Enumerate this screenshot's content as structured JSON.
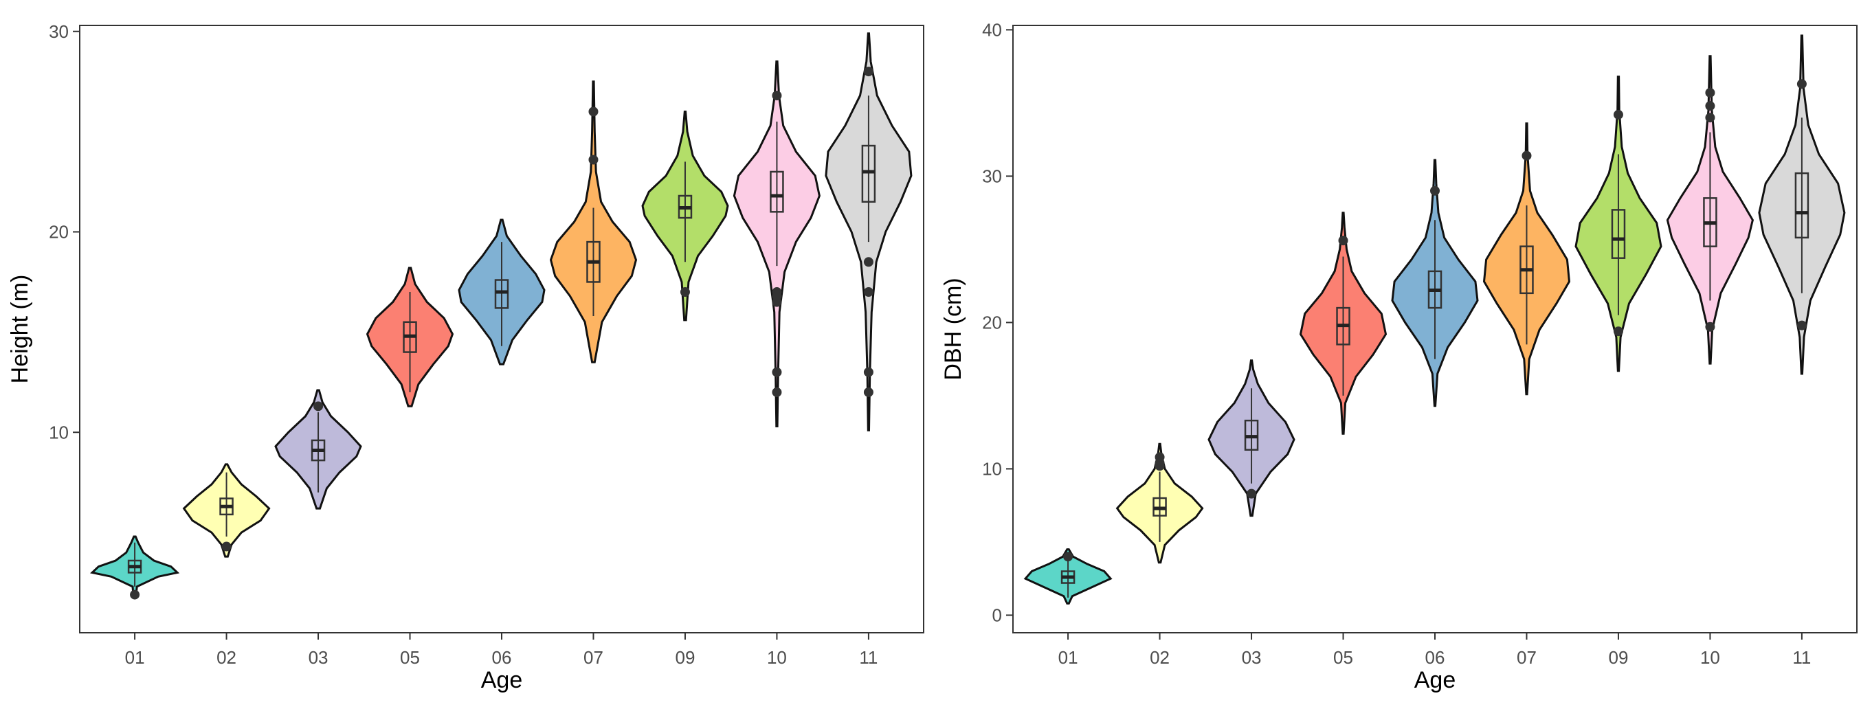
{
  "chart_data": [
    {
      "type": "violin",
      "xlabel": "Age",
      "ylabel": "Height (m)",
      "ylim": [
        0,
        30.3
      ],
      "yticks": [
        10,
        20,
        30
      ],
      "grid": false,
      "categories": [
        "01",
        "02",
        "03",
        "05",
        "06",
        "07",
        "09",
        "10",
        "11"
      ],
      "colors": [
        "#5cd6c8",
        "#ffffb3",
        "#bebada",
        "#fb8072",
        "#80b1d3",
        "#fdb462",
        "#b3de69",
        "#fccde5",
        "#d9d9d9"
      ],
      "groups": [
        {
          "category": "01",
          "violin_min": 1.8,
          "violin_max": 4.8,
          "q1": 3.0,
          "median": 3.3,
          "q3": 3.6,
          "whisker_low": 2.3,
          "whisker_high": 4.5,
          "outliers": [
            1.9
          ],
          "shape": [
            [
              1.8,
              0.03
            ],
            [
              2.3,
              0.05
            ],
            [
              2.8,
              0.55
            ],
            [
              3.0,
              1.0
            ],
            [
              3.3,
              0.85
            ],
            [
              3.6,
              0.45
            ],
            [
              4.0,
              0.2
            ],
            [
              4.5,
              0.08
            ],
            [
              4.8,
              0.02
            ]
          ]
        },
        {
          "category": "02",
          "violin_min": 3.8,
          "violin_max": 8.4,
          "q1": 5.9,
          "median": 6.3,
          "q3": 6.7,
          "whisker_low": 4.8,
          "whisker_high": 8.0,
          "outliers": [
            4.3
          ],
          "shape": [
            [
              3.8,
              0.03
            ],
            [
              4.4,
              0.12
            ],
            [
              5.0,
              0.35
            ],
            [
              5.6,
              0.8
            ],
            [
              6.2,
              1.0
            ],
            [
              6.8,
              0.7
            ],
            [
              7.4,
              0.35
            ],
            [
              8.0,
              0.12
            ],
            [
              8.4,
              0.02
            ]
          ]
        },
        {
          "category": "03",
          "violin_min": 6.2,
          "violin_max": 12.1,
          "q1": 8.6,
          "median": 9.1,
          "q3": 9.6,
          "whisker_low": 7.0,
          "whisker_high": 11.0,
          "outliers": [
            11.3
          ],
          "shape": [
            [
              6.2,
              0.04
            ],
            [
              7.2,
              0.2
            ],
            [
              8.0,
              0.5
            ],
            [
              8.8,
              0.9
            ],
            [
              9.3,
              1.0
            ],
            [
              10.0,
              0.7
            ],
            [
              10.8,
              0.3
            ],
            [
              11.5,
              0.1
            ],
            [
              12.1,
              0.02
            ]
          ]
        },
        {
          "category": "05",
          "violin_min": 11.3,
          "violin_max": 18.2,
          "q1": 14.0,
          "median": 14.8,
          "q3": 15.5,
          "whisker_low": 12.0,
          "whisker_high": 17.0,
          "outliers": [],
          "shape": [
            [
              11.3,
              0.04
            ],
            [
              12.4,
              0.2
            ],
            [
              13.4,
              0.55
            ],
            [
              14.3,
              0.9
            ],
            [
              14.9,
              1.0
            ],
            [
              15.7,
              0.8
            ],
            [
              16.5,
              0.4
            ],
            [
              17.4,
              0.12
            ],
            [
              18.2,
              0.02
            ]
          ]
        },
        {
          "category": "06",
          "violin_min": 13.4,
          "violin_max": 20.6,
          "q1": 16.2,
          "median": 17.0,
          "q3": 17.6,
          "whisker_low": 14.3,
          "whisker_high": 19.5,
          "outliers": [],
          "shape": [
            [
              13.4,
              0.04
            ],
            [
              14.6,
              0.25
            ],
            [
              15.6,
              0.6
            ],
            [
              16.5,
              0.95
            ],
            [
              17.1,
              1.0
            ],
            [
              17.9,
              0.8
            ],
            [
              18.8,
              0.45
            ],
            [
              19.8,
              0.12
            ],
            [
              20.6,
              0.02
            ]
          ]
        },
        {
          "category": "07",
          "violin_min": 13.5,
          "violin_max": 27.5,
          "q1": 17.5,
          "median": 18.5,
          "q3": 19.5,
          "whisker_low": 15.8,
          "whisker_high": 21.2,
          "outliers": [
            23.6,
            26.0
          ],
          "shape": [
            [
              13.5,
              0.03
            ],
            [
              15.5,
              0.2
            ],
            [
              16.8,
              0.55
            ],
            [
              17.8,
              0.9
            ],
            [
              18.6,
              1.0
            ],
            [
              19.5,
              0.85
            ],
            [
              20.5,
              0.45
            ],
            [
              21.5,
              0.18
            ],
            [
              23.0,
              0.06
            ],
            [
              25.0,
              0.03
            ],
            [
              27.5,
              0.01
            ]
          ]
        },
        {
          "category": "09",
          "violin_min": 15.6,
          "violin_max": 26.0,
          "q1": 20.7,
          "median": 21.2,
          "q3": 21.8,
          "whisker_low": 18.5,
          "whisker_high": 23.5,
          "outliers": [
            17.0
          ],
          "shape": [
            [
              15.6,
              0.02
            ],
            [
              17.5,
              0.08
            ],
            [
              18.8,
              0.3
            ],
            [
              19.8,
              0.65
            ],
            [
              20.8,
              0.95
            ],
            [
              21.3,
              1.0
            ],
            [
              22.0,
              0.85
            ],
            [
              22.8,
              0.45
            ],
            [
              23.8,
              0.18
            ],
            [
              25.0,
              0.05
            ],
            [
              26.0,
              0.01
            ]
          ]
        },
        {
          "category": "10",
          "violin_min": 10.3,
          "violin_max": 28.5,
          "q1": 21.0,
          "median": 21.8,
          "q3": 23.0,
          "whisker_low": 18.3,
          "whisker_high": 25.5,
          "outliers": [
            26.8,
            17.0,
            16.8,
            16.5,
            13.0,
            12.0
          ],
          "shape": [
            [
              10.3,
              0.01
            ],
            [
              13.0,
              0.03
            ],
            [
              16.0,
              0.06
            ],
            [
              18.0,
              0.18
            ],
            [
              19.5,
              0.45
            ],
            [
              20.7,
              0.8
            ],
            [
              21.8,
              1.0
            ],
            [
              22.8,
              0.9
            ],
            [
              24.0,
              0.45
            ],
            [
              25.3,
              0.15
            ],
            [
              26.8,
              0.05
            ],
            [
              28.5,
              0.01
            ]
          ]
        },
        {
          "category": "11",
          "violin_min": 10.1,
          "violin_max": 29.9,
          "q1": 21.5,
          "median": 23.0,
          "q3": 24.3,
          "whisker_low": 19.5,
          "whisker_high": 26.8,
          "outliers": [
            28.0,
            18.5,
            17.0,
            13.0,
            12.0
          ],
          "shape": [
            [
              10.1,
              0.01
            ],
            [
              13.0,
              0.03
            ],
            [
              16.0,
              0.07
            ],
            [
              18.5,
              0.18
            ],
            [
              20.0,
              0.4
            ],
            [
              21.5,
              0.75
            ],
            [
              22.8,
              1.0
            ],
            [
              24.0,
              0.95
            ],
            [
              25.3,
              0.55
            ],
            [
              26.8,
              0.2
            ],
            [
              28.5,
              0.05
            ],
            [
              29.9,
              0.01
            ]
          ]
        }
      ]
    },
    {
      "type": "violin",
      "xlabel": "Age",
      "ylabel": "DBH (cm)",
      "ylim": [
        -1.2,
        40.3
      ],
      "yticks": [
        0,
        10,
        20,
        30,
        40
      ],
      "grid": false,
      "categories": [
        "01",
        "02",
        "03",
        "05",
        "06",
        "07",
        "09",
        "10",
        "11"
      ],
      "colors": [
        "#5cd6c8",
        "#ffffb3",
        "#bebada",
        "#fb8072",
        "#80b1d3",
        "#fdb462",
        "#b3de69",
        "#fccde5",
        "#d9d9d9"
      ],
      "groups": [
        {
          "category": "01",
          "violin_min": 0.8,
          "violin_max": 4.5,
          "q1": 2.2,
          "median": 2.6,
          "q3": 3.0,
          "whisker_low": 1.2,
          "whisker_high": 3.8,
          "outliers": [
            4.0
          ],
          "shape": [
            [
              0.8,
              0.02
            ],
            [
              1.3,
              0.1
            ],
            [
              1.9,
              0.55
            ],
            [
              2.5,
              1.0
            ],
            [
              3.0,
              0.85
            ],
            [
              3.5,
              0.45
            ],
            [
              4.0,
              0.12
            ],
            [
              4.5,
              0.02
            ]
          ]
        },
        {
          "category": "02",
          "violin_min": 3.6,
          "violin_max": 11.7,
          "q1": 6.8,
          "median": 7.3,
          "q3": 8.0,
          "whisker_low": 5.0,
          "whisker_high": 9.8,
          "outliers": [
            10.8,
            10.4,
            10.2
          ],
          "shape": [
            [
              3.6,
              0.02
            ],
            [
              4.8,
              0.12
            ],
            [
              5.8,
              0.45
            ],
            [
              6.7,
              0.85
            ],
            [
              7.3,
              1.0
            ],
            [
              8.1,
              0.75
            ],
            [
              9.0,
              0.35
            ],
            [
              10.0,
              0.12
            ],
            [
              11.0,
              0.04
            ],
            [
              11.7,
              0.01
            ]
          ]
        },
        {
          "category": "03",
          "violin_min": 6.8,
          "violin_max": 17.4,
          "q1": 11.3,
          "median": 12.2,
          "q3": 13.3,
          "whisker_low": 9.0,
          "whisker_high": 15.5,
          "outliers": [
            8.3
          ],
          "shape": [
            [
              6.8,
              0.02
            ],
            [
              8.3,
              0.1
            ],
            [
              9.8,
              0.45
            ],
            [
              11.0,
              0.85
            ],
            [
              12.0,
              1.0
            ],
            [
              13.2,
              0.8
            ],
            [
              14.5,
              0.4
            ],
            [
              15.8,
              0.15
            ],
            [
              16.8,
              0.04
            ],
            [
              17.4,
              0.01
            ]
          ]
        },
        {
          "category": "05",
          "violin_min": 12.4,
          "violin_max": 27.5,
          "q1": 18.5,
          "median": 19.8,
          "q3": 21.0,
          "whisker_low": 15.0,
          "whisker_high": 24.5,
          "outliers": [
            25.6
          ],
          "shape": [
            [
              12.4,
              0.01
            ],
            [
              14.5,
              0.05
            ],
            [
              16.3,
              0.3
            ],
            [
              17.8,
              0.7
            ],
            [
              19.2,
              1.0
            ],
            [
              20.6,
              0.9
            ],
            [
              22.0,
              0.5
            ],
            [
              23.5,
              0.2
            ],
            [
              25.0,
              0.08
            ],
            [
              26.5,
              0.03
            ],
            [
              27.5,
              0.01
            ]
          ]
        },
        {
          "category": "06",
          "violin_min": 14.3,
          "violin_max": 31.1,
          "q1": 21.0,
          "median": 22.2,
          "q3": 23.5,
          "whisker_low": 17.5,
          "whisker_high": 27.0,
          "outliers": [
            29.0
          ],
          "shape": [
            [
              14.3,
              0.01
            ],
            [
              16.5,
              0.06
            ],
            [
              18.3,
              0.3
            ],
            [
              20.0,
              0.7
            ],
            [
              21.5,
              1.0
            ],
            [
              22.8,
              0.95
            ],
            [
              24.3,
              0.55
            ],
            [
              25.8,
              0.22
            ],
            [
              27.5,
              0.08
            ],
            [
              29.5,
              0.03
            ],
            [
              31.1,
              0.01
            ]
          ]
        },
        {
          "category": "07",
          "violin_min": 15.1,
          "violin_max": 33.6,
          "q1": 22.0,
          "median": 23.6,
          "q3": 25.2,
          "whisker_low": 18.5,
          "whisker_high": 28.0,
          "outliers": [
            31.4
          ],
          "shape": [
            [
              15.1,
              0.01
            ],
            [
              17.5,
              0.06
            ],
            [
              19.5,
              0.3
            ],
            [
              21.3,
              0.7
            ],
            [
              22.8,
              1.0
            ],
            [
              24.3,
              0.95
            ],
            [
              26.0,
              0.6
            ],
            [
              27.5,
              0.25
            ],
            [
              29.0,
              0.08
            ],
            [
              31.5,
              0.02
            ],
            [
              33.6,
              0.01
            ]
          ]
        },
        {
          "category": "09",
          "violin_min": 16.7,
          "violin_max": 36.8,
          "q1": 24.4,
          "median": 25.7,
          "q3": 27.7,
          "whisker_low": 20.5,
          "whisker_high": 31.5,
          "outliers": [
            34.2,
            19.4
          ],
          "shape": [
            [
              16.7,
              0.01
            ],
            [
              19.0,
              0.05
            ],
            [
              21.3,
              0.25
            ],
            [
              23.3,
              0.65
            ],
            [
              25.2,
              1.0
            ],
            [
              26.8,
              0.9
            ],
            [
              28.5,
              0.5
            ],
            [
              30.2,
              0.22
            ],
            [
              32.0,
              0.08
            ],
            [
              34.5,
              0.02
            ],
            [
              36.8,
              0.01
            ]
          ]
        },
        {
          "category": "10",
          "violin_min": 17.2,
          "violin_max": 38.2,
          "q1": 25.2,
          "median": 26.8,
          "q3": 28.5,
          "whisker_low": 21.5,
          "whisker_high": 33.0,
          "outliers": [
            35.7,
            34.8,
            34.0,
            19.7
          ],
          "shape": [
            [
              17.2,
              0.01
            ],
            [
              19.5,
              0.05
            ],
            [
              22.0,
              0.25
            ],
            [
              24.0,
              0.6
            ],
            [
              25.8,
              0.9
            ],
            [
              27.0,
              1.0
            ],
            [
              28.5,
              0.7
            ],
            [
              30.3,
              0.3
            ],
            [
              32.0,
              0.12
            ],
            [
              34.5,
              0.04
            ],
            [
              38.2,
              0.01
            ]
          ]
        },
        {
          "category": "11",
          "violin_min": 16.5,
          "violin_max": 39.6,
          "q1": 25.8,
          "median": 27.5,
          "q3": 30.2,
          "whisker_low": 22.0,
          "whisker_high": 34.0,
          "outliers": [
            36.3,
            19.8
          ],
          "shape": [
            [
              16.5,
              0.01
            ],
            [
              19.0,
              0.05
            ],
            [
              21.5,
              0.2
            ],
            [
              23.8,
              0.55
            ],
            [
              26.0,
              0.9
            ],
            [
              27.5,
              1.0
            ],
            [
              29.5,
              0.85
            ],
            [
              31.5,
              0.4
            ],
            [
              33.5,
              0.15
            ],
            [
              36.0,
              0.04
            ],
            [
              39.6,
              0.01
            ]
          ]
        }
      ]
    }
  ]
}
